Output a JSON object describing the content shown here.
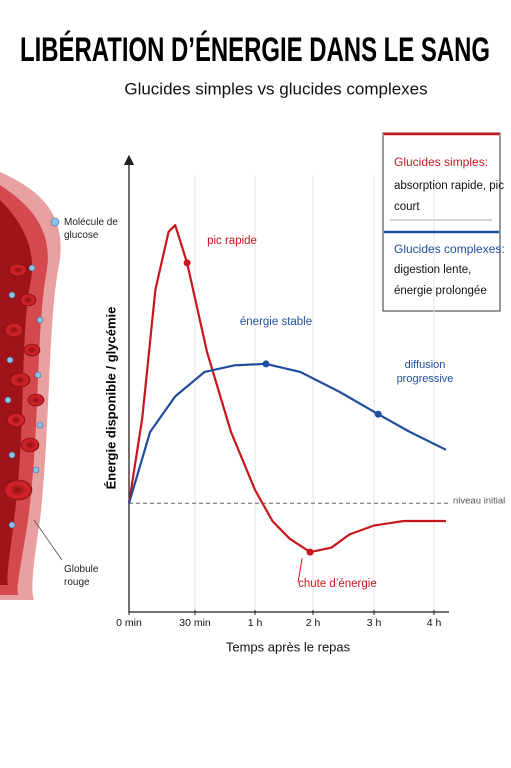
{
  "illustration": {
    "labels": [
      "Molécule de glucose",
      "Globule rouge"
    ]
  },
  "chart_data": {
    "type": "line",
    "title": "LIBÉRATION D’ÉNERGIE DANS LE SANG",
    "subtitle": "Glucides simples vs glucides complexes",
    "x_label": "Temps après le repas",
    "y_label": "Énergie disponible / glycémie",
    "xlim": [
      0,
      4.2
    ],
    "xticks": [
      {
        "value": 0,
        "label": "0 min"
      },
      {
        "value": 0.5,
        "label": "30 min"
      },
      {
        "value": 1,
        "label": "1 h"
      },
      {
        "value": 2,
        "label": "2 h"
      },
      {
        "value": 3,
        "label": "3 h"
      },
      {
        "value": 4,
        "label": "4 h"
      }
    ],
    "ylim": [
      0,
      100
    ],
    "grid": true,
    "reference_line": {
      "value": 24,
      "label": "niveau initial"
    },
    "series": [
      {
        "name": "Glucides simples:",
        "description": "absorption rapide, pic court",
        "color": "#c8161d",
        "x": [
          0,
          0.1,
          0.2,
          0.3,
          0.35,
          0.44,
          0.6,
          0.8,
          1.0,
          1.3,
          1.6,
          1.95,
          2.3,
          2.6,
          3.0,
          3.5,
          4.2
        ],
        "values": [
          24,
          43,
          72,
          85,
          86.5,
          78,
          58,
          40,
          27,
          20,
          16,
          13,
          14,
          17,
          19,
          20,
          20
        ]
      },
      {
        "name": "Glucides complexes:",
        "description": "digestion lente, énergie prolongée",
        "color": "#1f4e9c",
        "x": [
          0,
          0.16,
          0.35,
          0.58,
          0.83,
          1.19,
          1.78,
          2.44,
          3.07,
          3.6,
          4.2
        ],
        "values": [
          24,
          40,
          48,
          53.5,
          55,
          55.3,
          53.5,
          49,
          44,
          40,
          36
        ]
      }
    ],
    "annotations": [
      "pic rapide",
      "énergie stable",
      "diffusion progressive",
      "chute d’énergie"
    ],
    "legend_position": "upper right"
  }
}
